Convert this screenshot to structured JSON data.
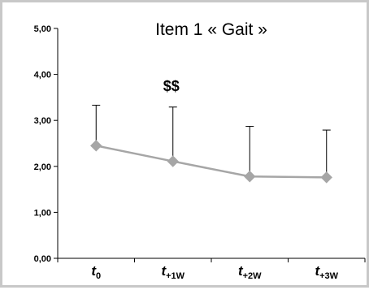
{
  "chart_data": {
    "type": "line",
    "title": "Item 1 « Gait »",
    "categories": [
      {
        "base": "t",
        "sub": "0"
      },
      {
        "base": "t",
        "sub": "+1W"
      },
      {
        "base": "t",
        "sub": "+2W"
      },
      {
        "base": "t",
        "sub": "+3W"
      }
    ],
    "series": [
      {
        "values": [
          2.45,
          2.11,
          1.78,
          1.76
        ],
        "error_upper": [
          3.33,
          3.29,
          2.87,
          2.79
        ],
        "color": "#a6a6a6"
      }
    ],
    "ylim": [
      0,
      5
    ],
    "yticks": [
      "0,00",
      "1,00",
      "2,00",
      "3,00",
      "4,00",
      "5,00"
    ],
    "annotations": [
      {
        "text": "$$",
        "category_index": 1
      }
    ],
    "grid": false,
    "legend": "none"
  }
}
